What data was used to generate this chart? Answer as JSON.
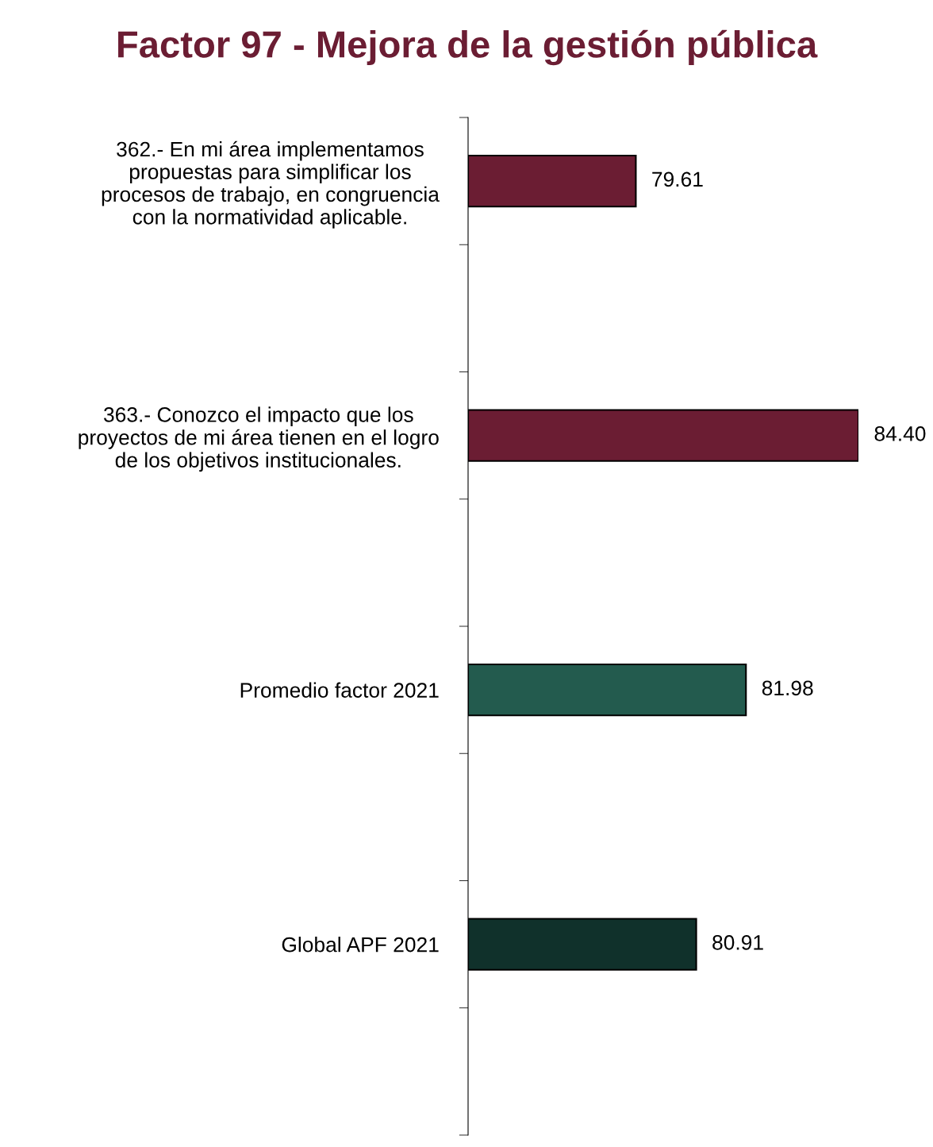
{
  "chart_data": {
    "type": "bar",
    "orientation": "horizontal",
    "title": "Factor 97 - Mejora de la gestión pública",
    "categories": [
      "362.- En mi área implementamos\npropuestas para simplificar los\nprocesos de trabajo, en congruencia\ncon la normatividad aplicable.",
      null,
      "363.- Conozco el impacto que los\nproyectos de mi área tienen en el logro\nde los objetivos institucionales.",
      null,
      "Promedio factor 2021",
      null,
      "Global APF 2021",
      null
    ],
    "values": [
      79.61,
      null,
      84.4,
      null,
      81.98,
      null,
      80.91,
      null
    ],
    "value_labels": [
      "79.61",
      null,
      "84.40",
      null,
      "81.98",
      null,
      "80.91",
      null
    ],
    "colors": [
      "#6b1d33",
      null,
      "#6b1d33",
      null,
      "#235b4e",
      null,
      "#10312b",
      null
    ],
    "xlim": [
      76,
      84.4
    ],
    "grid": false,
    "legend": false,
    "tick_labels": "y"
  }
}
